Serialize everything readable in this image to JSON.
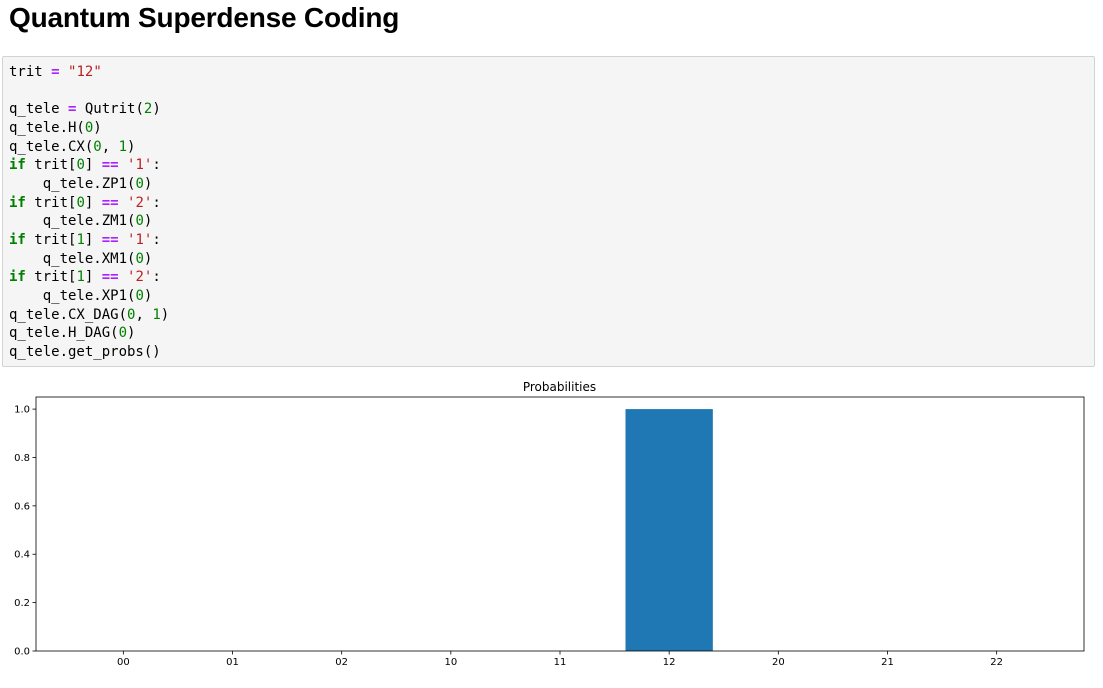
{
  "page": {
    "title": "Quantum Superdense Coding"
  },
  "code_cell": {
    "lines": [
      [
        {
          "t": "trit ",
          "c": "plain"
        },
        {
          "t": "=",
          "c": "op"
        },
        {
          "t": " ",
          "c": "plain"
        },
        {
          "t": "\"12\"",
          "c": "str"
        }
      ],
      [],
      [
        {
          "t": "q_tele ",
          "c": "plain"
        },
        {
          "t": "=",
          "c": "op"
        },
        {
          "t": " Qutrit(",
          "c": "plain"
        },
        {
          "t": "2",
          "c": "num"
        },
        {
          "t": ")",
          "c": "plain"
        }
      ],
      [
        {
          "t": "q_tele.H(",
          "c": "plain"
        },
        {
          "t": "0",
          "c": "num"
        },
        {
          "t": ")",
          "c": "plain"
        }
      ],
      [
        {
          "t": "q_tele.CX(",
          "c": "plain"
        },
        {
          "t": "0",
          "c": "num"
        },
        {
          "t": ", ",
          "c": "plain"
        },
        {
          "t": "1",
          "c": "num"
        },
        {
          "t": ")",
          "c": "plain"
        }
      ],
      [
        {
          "t": "if",
          "c": "kw"
        },
        {
          "t": " trit[",
          "c": "plain"
        },
        {
          "t": "0",
          "c": "num"
        },
        {
          "t": "] ",
          "c": "plain"
        },
        {
          "t": "==",
          "c": "op"
        },
        {
          "t": " ",
          "c": "plain"
        },
        {
          "t": "'1'",
          "c": "str"
        },
        {
          "t": ":",
          "c": "plain"
        }
      ],
      [
        {
          "t": "    q_tele.ZP1(",
          "c": "plain"
        },
        {
          "t": "0",
          "c": "num"
        },
        {
          "t": ")",
          "c": "plain"
        }
      ],
      [
        {
          "t": "if",
          "c": "kw"
        },
        {
          "t": " trit[",
          "c": "plain"
        },
        {
          "t": "0",
          "c": "num"
        },
        {
          "t": "] ",
          "c": "plain"
        },
        {
          "t": "==",
          "c": "op"
        },
        {
          "t": " ",
          "c": "plain"
        },
        {
          "t": "'2'",
          "c": "str"
        },
        {
          "t": ":",
          "c": "plain"
        }
      ],
      [
        {
          "t": "    q_tele.ZM1(",
          "c": "plain"
        },
        {
          "t": "0",
          "c": "num"
        },
        {
          "t": ")",
          "c": "plain"
        }
      ],
      [
        {
          "t": "if",
          "c": "kw"
        },
        {
          "t": " trit[",
          "c": "plain"
        },
        {
          "t": "1",
          "c": "num"
        },
        {
          "t": "] ",
          "c": "plain"
        },
        {
          "t": "==",
          "c": "op"
        },
        {
          "t": " ",
          "c": "plain"
        },
        {
          "t": "'1'",
          "c": "str"
        },
        {
          "t": ":",
          "c": "plain"
        }
      ],
      [
        {
          "t": "    q_tele.XM1(",
          "c": "plain"
        },
        {
          "t": "0",
          "c": "num"
        },
        {
          "t": ")",
          "c": "plain"
        }
      ],
      [
        {
          "t": "if",
          "c": "kw"
        },
        {
          "t": " trit[",
          "c": "plain"
        },
        {
          "t": "1",
          "c": "num"
        },
        {
          "t": "] ",
          "c": "plain"
        },
        {
          "t": "==",
          "c": "op"
        },
        {
          "t": " ",
          "c": "plain"
        },
        {
          "t": "'2'",
          "c": "str"
        },
        {
          "t": ":",
          "c": "plain"
        }
      ],
      [
        {
          "t": "    q_tele.XP1(",
          "c": "plain"
        },
        {
          "t": "0",
          "c": "num"
        },
        {
          "t": ")",
          "c": "plain"
        }
      ],
      [
        {
          "t": "q_tele.CX_DAG(",
          "c": "plain"
        },
        {
          "t": "0",
          "c": "num"
        },
        {
          "t": ", ",
          "c": "plain"
        },
        {
          "t": "1",
          "c": "num"
        },
        {
          "t": ")",
          "c": "plain"
        }
      ],
      [
        {
          "t": "q_tele.H_DAG(",
          "c": "plain"
        },
        {
          "t": "0",
          "c": "num"
        },
        {
          "t": ")",
          "c": "plain"
        }
      ],
      [
        {
          "t": "q_tele.get_probs()",
          "c": "plain"
        }
      ]
    ]
  },
  "chart_data": {
    "type": "bar",
    "title": "Probabilities",
    "xlabel": "",
    "ylabel": "",
    "categories": [
      "00",
      "01",
      "02",
      "10",
      "11",
      "12",
      "20",
      "21",
      "22"
    ],
    "values": [
      0,
      0,
      0,
      0,
      0,
      1.0,
      0,
      0,
      0
    ],
    "ylim": [
      0,
      1.05
    ],
    "yticks": [
      "0.0",
      "0.2",
      "0.4",
      "0.6",
      "0.8",
      "1.0"
    ],
    "grid": false,
    "bar_color": "#1f77b4"
  },
  "colors": {
    "keyword": "#008000",
    "operator": "#aa22ff",
    "string": "#ba2121",
    "number": "#008000",
    "cell_background": "#f5f5f5"
  }
}
